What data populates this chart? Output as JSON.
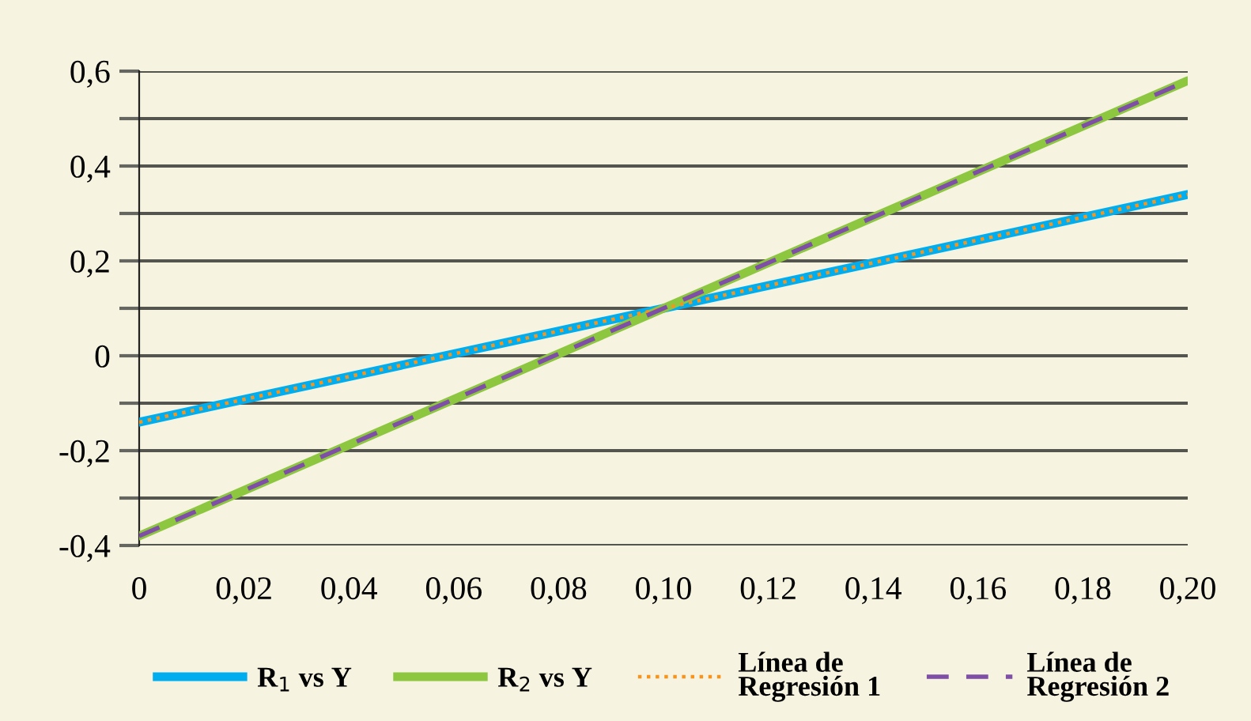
{
  "chart_data": {
    "type": "line",
    "x": [
      0,
      0.2
    ],
    "series": [
      {
        "name": "R$_{1}$ vs Y",
        "color": "#00aeef",
        "values": [
          -0.14,
          0.34
        ],
        "line_style": "solid"
      },
      {
        "name": "R$_{2}$ vs Y",
        "color": "#8dc63f",
        "values": [
          -0.38,
          0.58
        ],
        "line_style": "solid"
      },
      {
        "name": "Línea de\nRegresión 1",
        "color": "#f7941d",
        "values": [
          -0.14,
          0.34
        ],
        "line_style": "dotted"
      },
      {
        "name": "Línea de\nRegresión 2",
        "color": "#7f4fa8",
        "values": [
          -0.38,
          0.58
        ],
        "line_style": "dashed"
      }
    ],
    "xlim": [
      0,
      0.2
    ],
    "xticks": [
      0,
      {
        "value": 0.02,
        "label": "0,02"
      },
      {
        "value": 0.04,
        "label": "0,04"
      },
      {
        "value": 0.06,
        "label": "0,06"
      },
      {
        "value": 0.08,
        "label": "0,08"
      },
      {
        "value": 0.1,
        "label": "0,10"
      },
      {
        "value": 0.12,
        "label": "0,12"
      },
      {
        "value": 0.14,
        "label": "0,14"
      },
      {
        "value": 0.16,
        "label": "0,16"
      },
      {
        "value": 0.18,
        "label": "0,18"
      },
      {
        "value": 0.2,
        "label": "0,20"
      }
    ],
    "ylim": [
      -0.4,
      0.6
    ],
    "yticks": [
      {
        "value": -0.4,
        "label": "-0,4"
      },
      {
        "value": -0.3,
        "label": null
      },
      {
        "value": -0.2,
        "label": "-0,2"
      },
      {
        "value": -0.1,
        "label": null
      },
      0,
      {
        "value": 0.1,
        "label": null
      },
      {
        "value": 0.2,
        "label": "0,2"
      },
      {
        "value": 0.3,
        "label": null
      },
      {
        "value": 0.4,
        "label": "0,4"
      },
      {
        "value": 0.5,
        "label": null
      },
      {
        "value": 0.6,
        "label": "0,6"
      }
    ],
    "grid": "y",
    "legend": "bottom",
    "marker": "none"
  }
}
